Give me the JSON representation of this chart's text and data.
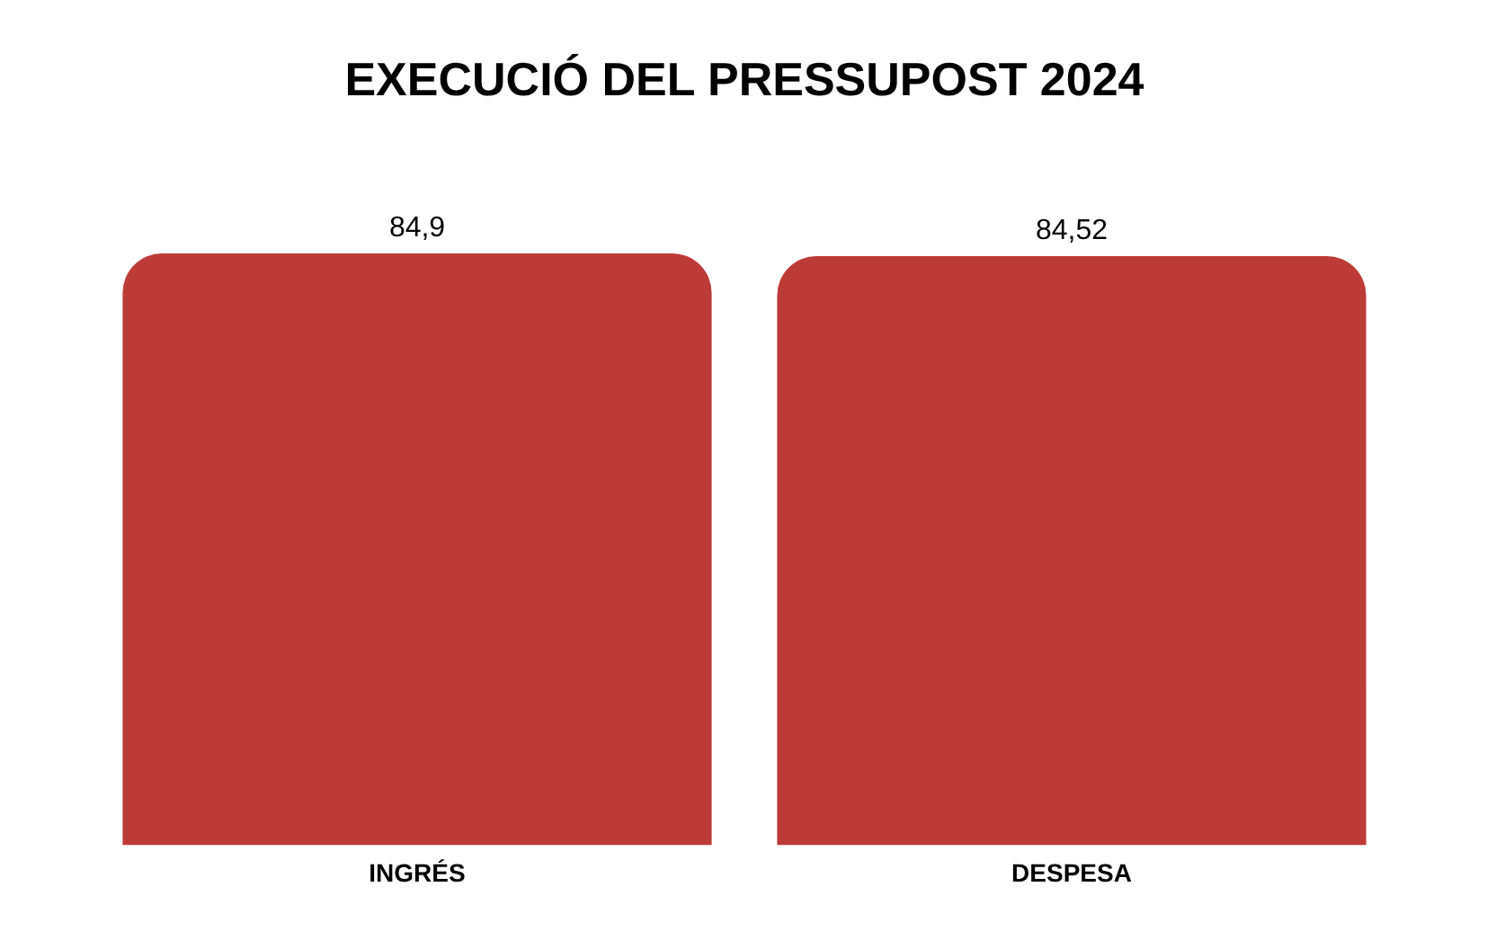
{
  "chart_data": {
    "type": "bar",
    "title": "EXECUCIÓ DEL PRESSUPOST 2024",
    "categories": [
      "INGRÉS",
      "DESPESA"
    ],
    "values": [
      84.9,
      84.52
    ],
    "value_labels": [
      "84,9",
      "84,52"
    ],
    "color": "#bd3b37",
    "grid": false,
    "legend": false
  }
}
